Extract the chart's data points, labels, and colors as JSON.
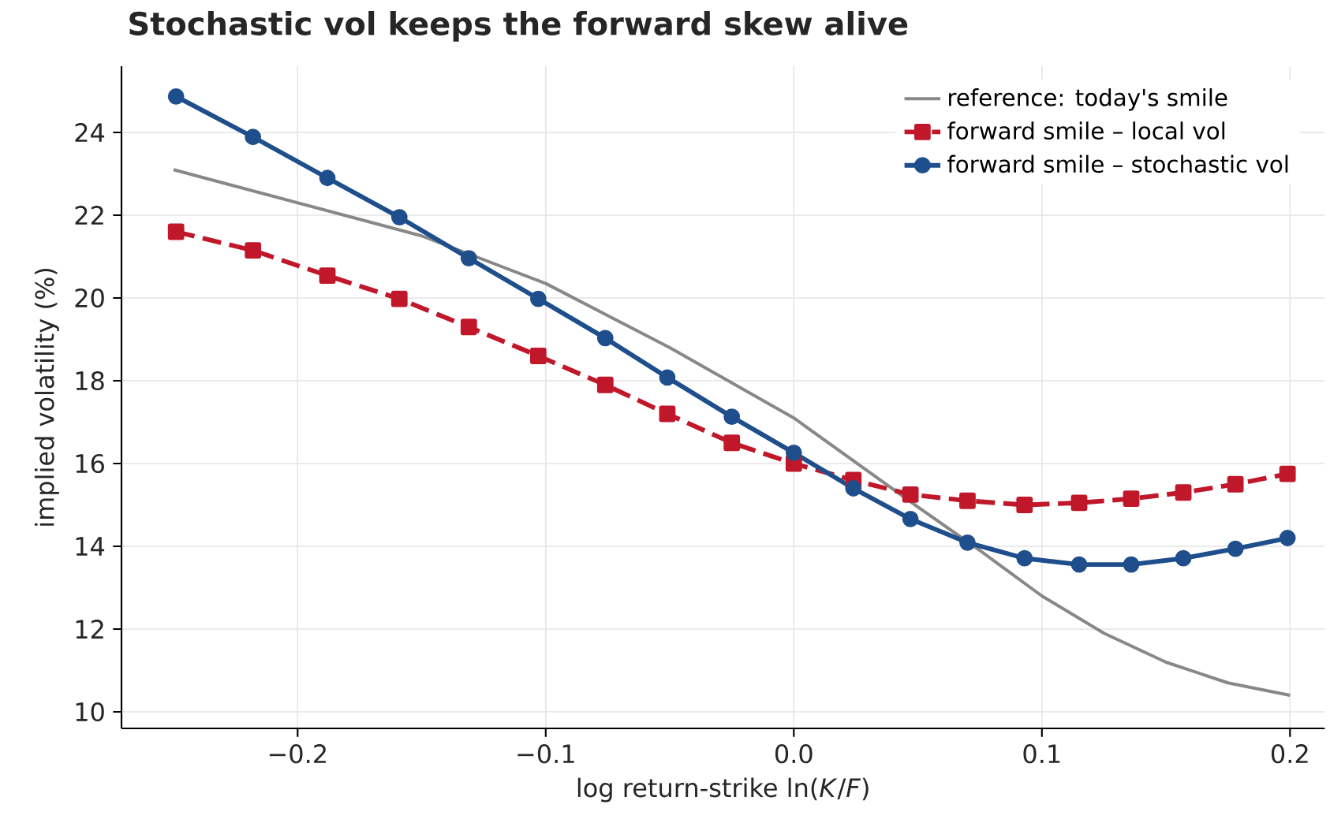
{
  "chart_data": {
    "type": "line",
    "title": "Stochastic vol keeps the forward skew alive",
    "xlabel": "log return-strike  ln(*K*/*F*)",
    "ylabel": "implied volatility  (%)",
    "xlim": [
      -0.271,
      0.214
    ],
    "ylim": [
      9.6,
      25.6
    ],
    "xticks": [
      {
        "value": -0.2,
        "label": "−0.2"
      },
      {
        "value": -0.1,
        "label": "−0.1"
      },
      {
        "value": 0.0,
        "label": "0.0"
      },
      {
        "value": 0.1,
        "label": "0.1"
      },
      {
        "value": 0.2,
        "label": "0.2"
      }
    ],
    "yticks": [
      10,
      12,
      14,
      16,
      18,
      20,
      22,
      24
    ],
    "grid": true,
    "legend": "top right",
    "series": [
      {
        "name": "reference: today's smile",
        "color": "#888888",
        "marker": "none",
        "line_style": "solid",
        "x": [
          -0.25,
          -0.2,
          -0.15,
          -0.1,
          -0.05,
          0.0,
          0.05,
          0.075,
          0.1,
          0.125,
          0.15,
          0.175,
          0.2
        ],
        "values": [
          23.1,
          22.3,
          21.5,
          20.35,
          18.8,
          17.1,
          14.95,
          13.9,
          12.8,
          11.9,
          11.2,
          10.7,
          10.4
        ]
      },
      {
        "name": "forward smile – local vol",
        "color": "#c0182a",
        "marker": "square",
        "line_style": "dashed",
        "x": [
          -0.249,
          -0.218,
          -0.188,
          -0.159,
          -0.131,
          -0.103,
          -0.076,
          -0.051,
          -0.025,
          0.0,
          0.024,
          0.047,
          0.07,
          0.093,
          0.115,
          0.136,
          0.157,
          0.178,
          0.199
        ],
        "values": [
          21.6,
          21.15,
          20.54,
          19.98,
          19.3,
          18.6,
          17.9,
          17.2,
          16.5,
          16.0,
          15.6,
          15.25,
          15.1,
          15.0,
          15.05,
          15.15,
          15.3,
          15.5,
          15.75
        ]
      },
      {
        "name": "forward smile – stochastic vol",
        "color": "#1f4e8c",
        "marker": "circle",
        "line_style": "solid",
        "x": [
          -0.249,
          -0.218,
          -0.188,
          -0.159,
          -0.131,
          -0.103,
          -0.076,
          -0.051,
          -0.025,
          0.0,
          0.024,
          0.047,
          0.07,
          0.093,
          0.115,
          0.136,
          0.157,
          0.178,
          0.199
        ],
        "values": [
          24.87,
          23.89,
          22.9,
          21.95,
          20.96,
          19.98,
          19.03,
          18.08,
          17.13,
          16.26,
          15.4,
          14.66,
          14.09,
          13.71,
          13.56,
          13.56,
          13.71,
          13.94,
          14.2
        ]
      }
    ]
  }
}
